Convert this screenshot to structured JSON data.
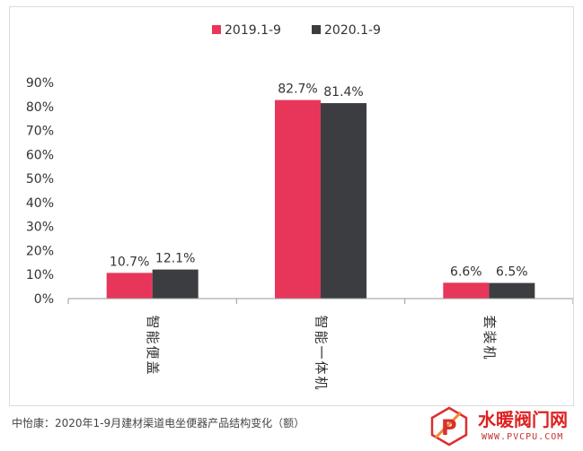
{
  "chart_data": {
    "type": "bar",
    "categories": [
      "智能便盖",
      "智能一体机",
      "套装机"
    ],
    "series": [
      {
        "name": "2019.1-9",
        "values": [
          10.7,
          82.7,
          6.6
        ],
        "labels": [
          "10.7%",
          "82.7%",
          "6.6%"
        ],
        "color": "#e8365a"
      },
      {
        "name": "2020.1-9",
        "values": [
          12.1,
          81.4,
          6.5
        ],
        "labels": [
          "12.1%",
          "81.4%",
          "6.5%"
        ],
        "color": "#3b3d40"
      }
    ],
    "ylim": [
      0,
      90
    ],
    "yticks": [
      0,
      10,
      20,
      30,
      40,
      50,
      60,
      70,
      80,
      90
    ],
    "ytick_labels": [
      "0%",
      "10%",
      "20%",
      "30%",
      "40%",
      "50%",
      "60%",
      "70%",
      "80%",
      "90%"
    ],
    "title": "",
    "xlabel": "",
    "ylabel": "",
    "legend_position": "top-center",
    "grid": false
  },
  "caption": "中怡康：2020年1-9月建材渠道电坐便器产品结构变化（额）",
  "watermark": {
    "title": "水暖阀门网",
    "url": "WWW.PVCPU.COM",
    "logo_text": "P"
  }
}
